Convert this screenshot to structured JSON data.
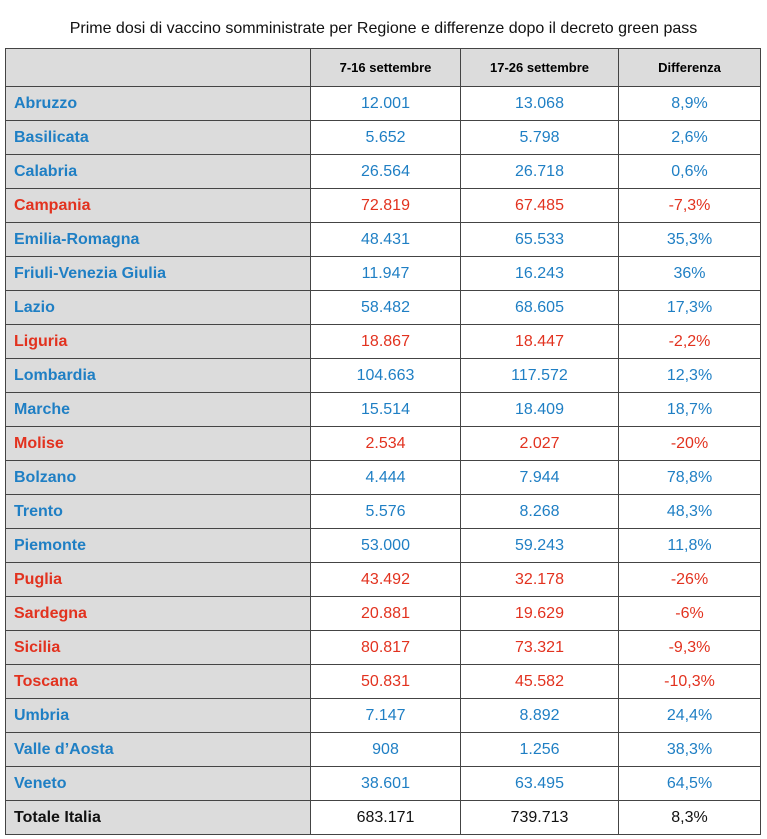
{
  "header": {
    "title": "Prime dosi di vaccino somministrate per Regione e differenze dopo il decreto green pass"
  },
  "table": {
    "columns": [
      "7-16 settembre",
      "17-26 settembre",
      "Differenza"
    ],
    "rows": [
      {
        "cells": [
          "Abruzzo",
          "12.001",
          "13.068",
          "8,9%"
        ],
        "color": "#1f7fc4"
      },
      {
        "cells": [
          "Basilicata",
          "5.652",
          "5.798",
          "2,6%"
        ],
        "color": "#1f7fc4"
      },
      {
        "cells": [
          "Calabria",
          "26.564",
          "26.718",
          "0,6%"
        ],
        "color": "#1f7fc4"
      },
      {
        "cells": [
          "Campania",
          "72.819",
          "67.485",
          "-7,3%"
        ],
        "color": "#e2321f"
      },
      {
        "cells": [
          "Emilia-Romagna",
          "48.431",
          "65.533",
          "35,3%"
        ],
        "color": "#1f7fc4"
      },
      {
        "cells": [
          "Friuli-Venezia Giulia",
          "11.947",
          "16.243",
          "36%"
        ],
        "color": "#1f7fc4"
      },
      {
        "cells": [
          "Lazio",
          "58.482",
          "68.605",
          "17,3%"
        ],
        "color": "#1f7fc4"
      },
      {
        "cells": [
          "Liguria",
          "18.867",
          "18.447",
          "-2,2%"
        ],
        "color": "#e2321f"
      },
      {
        "cells": [
          "Lombardia",
          "104.663",
          "117.572",
          "12,3%"
        ],
        "color": "#1f7fc4"
      },
      {
        "cells": [
          "Marche",
          "15.514",
          "18.409",
          "18,7%"
        ],
        "color": "#1f7fc4"
      },
      {
        "cells": [
          "Molise",
          "2.534",
          "2.027",
          "-20%"
        ],
        "color": "#e2321f"
      },
      {
        "cells": [
          "Bolzano",
          "4.444",
          "7.944",
          "78,8%"
        ],
        "color": "#1f7fc4"
      },
      {
        "cells": [
          "Trento",
          "5.576",
          "8.268",
          "48,3%"
        ],
        "color": "#1f7fc4"
      },
      {
        "cells": [
          "Piemonte",
          "53.000",
          "59.243",
          "11,8%"
        ],
        "color": "#1f7fc4"
      },
      {
        "cells": [
          "Puglia",
          "43.492",
          "32.178",
          "-26%"
        ],
        "color": "#e2321f"
      },
      {
        "cells": [
          "Sardegna",
          "20.881",
          "19.629",
          "-6%"
        ],
        "color": "#e2321f"
      },
      {
        "cells": [
          "Sicilia",
          "80.817",
          "73.321",
          "-9,3%"
        ],
        "color": "#e2321f"
      },
      {
        "cells": [
          "Toscana",
          "50.831",
          "45.582",
          "-10,3%"
        ],
        "color": "#e2321f"
      },
      {
        "cells": [
          "Umbria",
          "7.147",
          "8.892",
          "24,4%"
        ],
        "color": "#1f7fc4"
      },
      {
        "cells": [
          "Valle d’Aosta",
          "908",
          "1.256",
          "38,3%"
        ],
        "color": "#1f7fc4"
      },
      {
        "cells": [
          "Veneto",
          "38.601",
          "63.495",
          "64,5%"
        ],
        "color": "#1f7fc4"
      },
      {
        "cells": [
          "Totale Italia",
          "683.171",
          "739.713",
          "8,3%"
        ],
        "color": "#111111"
      }
    ]
  }
}
